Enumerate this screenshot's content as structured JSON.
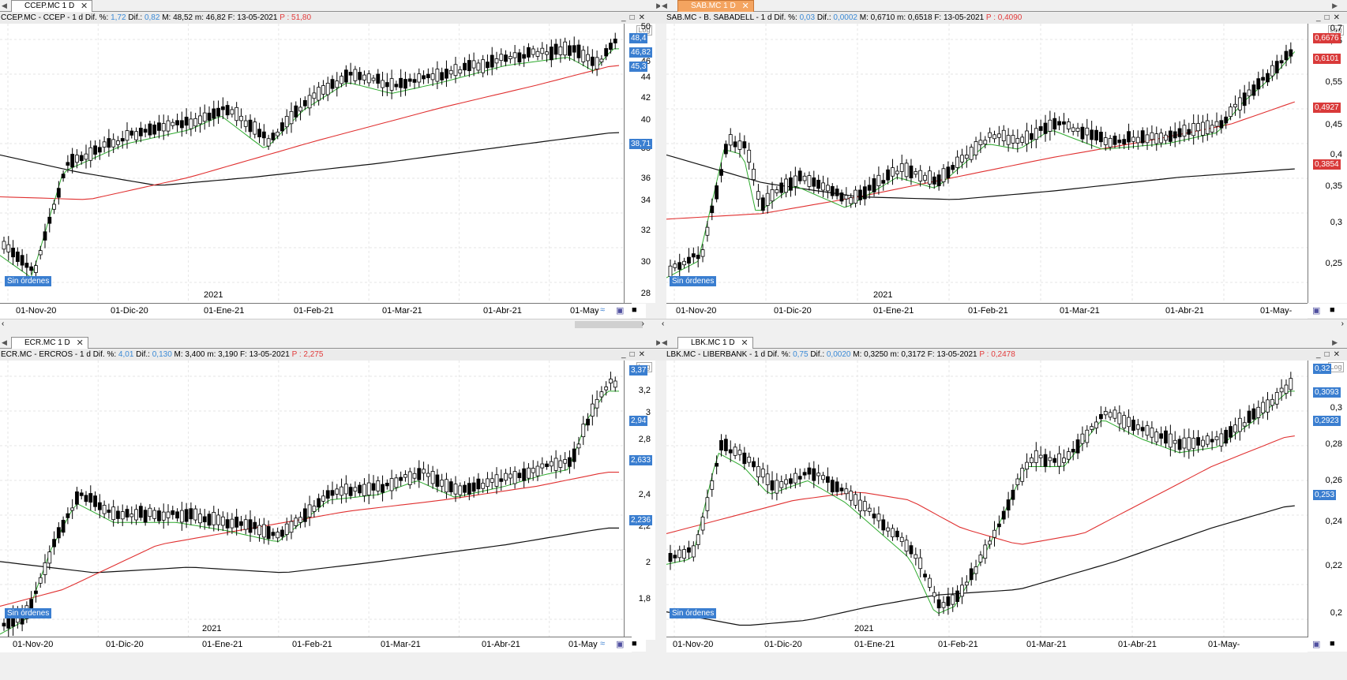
{
  "panes": [
    {
      "tab": "CCEP.MC 1 D",
      "active": false,
      "info": {
        "symbol": "CCEP.MC - CCEP -  1 d",
        "dif_pct_label": "Dif. %:",
        "dif_pct": "1,72",
        "dif_label": "Dif.:",
        "dif": "0,82",
        "max": "M: 48,52",
        "min": "m: 46,82",
        "date": "F: 13-05-2021",
        "p": "P : 51,80"
      },
      "y_ticks": [
        "50",
        "46",
        "44",
        "42",
        "40",
        "38",
        "36",
        "34",
        "32",
        "30",
        "28"
      ],
      "price_tags": [
        {
          "label": "48,4",
          "color": "blue"
        },
        {
          "label": "46,82",
          "color": "blue"
        },
        {
          "label": "45,3",
          "color": "blue"
        },
        {
          "label": "38,71",
          "color": "blue"
        }
      ],
      "x_labels": [
        "01-Nov-20",
        "01-Dic-20",
        "01-Ene-21",
        "01-Feb-21",
        "01-Mar-21",
        "01-Abr-21",
        "01-May"
      ],
      "year_label": "2021",
      "badge": "Sin órdenes",
      "log_label": "Log"
    },
    {
      "tab": "SAB.MC 1 D",
      "active": true,
      "info": {
        "symbol": "SAB.MC - B. SABADELL -  1 d",
        "dif_pct_label": "Dif. %:",
        "dif_pct": "0,03",
        "dif_label": "Dif.:",
        "dif": "0,0002",
        "max": "M: 0,6710",
        "min": "m: 0,6518",
        "date": "F: 13-05-2021",
        "p": "P : 0,4090"
      },
      "y_ticks": [
        "0,7",
        "0,65",
        "0,55",
        "0,45",
        "0,4",
        "0,35",
        "0,3",
        "0,25"
      ],
      "price_tags": [
        {
          "label": "0,6676",
          "color": "red"
        },
        {
          "label": "0,6101",
          "color": "red"
        },
        {
          "label": "0,4927",
          "color": "red"
        },
        {
          "label": "0,3854",
          "color": "red"
        }
      ],
      "x_labels": [
        "01-Nov-20",
        "01-Dic-20",
        "01-Ene-21",
        "01-Feb-21",
        "01-Mar-21",
        "01-Abr-21",
        "01-May-"
      ],
      "year_label": "2021",
      "badge": "Sin órdenes",
      "log_label": "Log"
    },
    {
      "tab": "ECR.MC 1 D",
      "active": false,
      "info": {
        "symbol": "ECR.MC - ERCROS -  1 d",
        "dif_pct_label": "Dif. %:",
        "dif_pct": "4,01",
        "dif_label": "Dif.:",
        "dif": "0,130",
        "max": "M: 3,400",
        "min": "m: 3,190",
        "date": "F: 13-05-2021",
        "p": "P : 2,275"
      },
      "y_ticks": [
        "3,2",
        "3",
        "2,8",
        "2,4",
        "2,2",
        "2",
        "1,8"
      ],
      "price_tags": [
        {
          "label": "3,37",
          "color": "blue"
        },
        {
          "label": "2,94",
          "color": "blue"
        },
        {
          "label": "2,633",
          "color": "blue"
        },
        {
          "label": "2,236",
          "color": "blue"
        }
      ],
      "x_labels": [
        "01-Nov-20",
        "01-Dic-20",
        "01-Ene-21",
        "01-Feb-21",
        "01-Mar-21",
        "01-Abr-21",
        "01-May"
      ],
      "year_label": "2021",
      "badge": "Sin órdenes",
      "log_label": "Log"
    },
    {
      "tab": "LBK.MC 1 D",
      "active": false,
      "info": {
        "symbol": "LBK.MC - LIBERBANK -  1 d",
        "dif_pct_label": "Dif. %:",
        "dif_pct": "0,75",
        "dif_label": "Dif.:",
        "dif": "0,0020",
        "max": "M: 0,3250",
        "min": "m: 0,3172",
        "date": "F: 13-05-2021",
        "p": "P : 0,2478"
      },
      "y_ticks": [
        "0,3",
        "0,28",
        "0,26",
        "0,24",
        "0,22",
        "0,2"
      ],
      "price_tags": [
        {
          "label": "0,32",
          "color": "blue"
        },
        {
          "label": "0,3093",
          "color": "blue"
        },
        {
          "label": "0,2923",
          "color": "blue"
        },
        {
          "label": "0,253",
          "color": "blue"
        }
      ],
      "x_labels": [
        "01-Nov-20",
        "01-Dic-20",
        "01-Ene-21",
        "01-Feb-21",
        "01-Mar-21",
        "01-Abr-21",
        "01-May-"
      ],
      "year_label": "2021",
      "badge": "Sin órdenes",
      "log_label": "Log"
    }
  ],
  "colors": {
    "sma_fast": "#2eaa2e",
    "sma_mid": "#e03030",
    "sma_slow": "#111111",
    "badge": "#3a7ed0",
    "tab_active": "#f4a460"
  }
}
